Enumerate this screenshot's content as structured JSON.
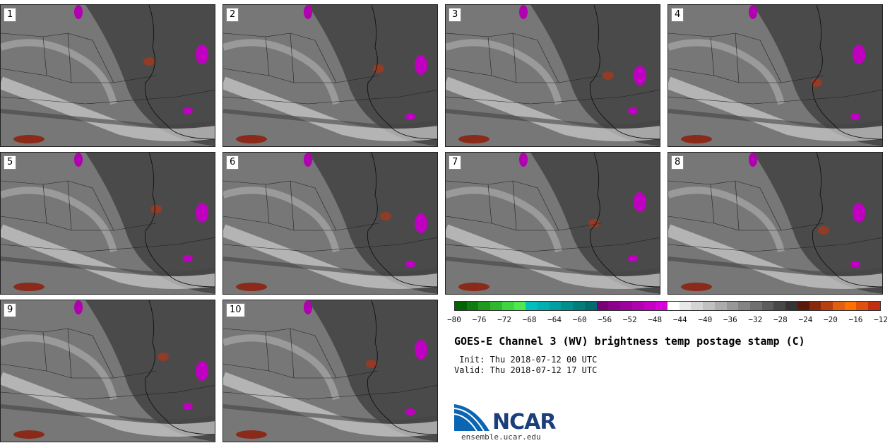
{
  "panels": [
    {
      "label": "1"
    },
    {
      "label": "2"
    },
    {
      "label": "3"
    },
    {
      "label": "4"
    },
    {
      "label": "5"
    },
    {
      "label": "6"
    },
    {
      "label": "7"
    },
    {
      "label": "8"
    },
    {
      "label": "9"
    },
    {
      "label": "10"
    }
  ],
  "colorbar": {
    "colors": [
      "#006400",
      "#117a11",
      "#1f9a1f",
      "#2eb82e",
      "#3ed63e",
      "#4fe84f",
      "#00bfbf",
      "#00b0b0",
      "#009f9f",
      "#008e8e",
      "#007d7d",
      "#006c6c",
      "#7a007a",
      "#8c008c",
      "#9e009e",
      "#b000b0",
      "#c400c4",
      "#d800d8",
      "#ffffff",
      "#e8e8e8",
      "#d4d4d4",
      "#c0c0c0",
      "#acacac",
      "#989898",
      "#848484",
      "#707070",
      "#5c5c5c",
      "#484848",
      "#343434",
      "#5a1a0a",
      "#8b2a0a",
      "#b84010",
      "#e06010",
      "#ff7000",
      "#e05010",
      "#c03010"
    ],
    "ticks": [
      "−80",
      "−76",
      "−72",
      "−68",
      "−64",
      "−60",
      "−56",
      "−52",
      "−48",
      "−44",
      "−40",
      "−36",
      "−32",
      "−28",
      "−24",
      "−20",
      "−16",
      "−12"
    ]
  },
  "title": "GOES-E Channel 3 (WV) brightness temp postage stamp (C)",
  "init": " Init: Thu 2018-07-12 00 UTC",
  "valid": "Valid: Thu 2018-07-12 17 UTC",
  "logo": {
    "text": "NCAR",
    "url": "ensemble.ucar.edu"
  }
}
